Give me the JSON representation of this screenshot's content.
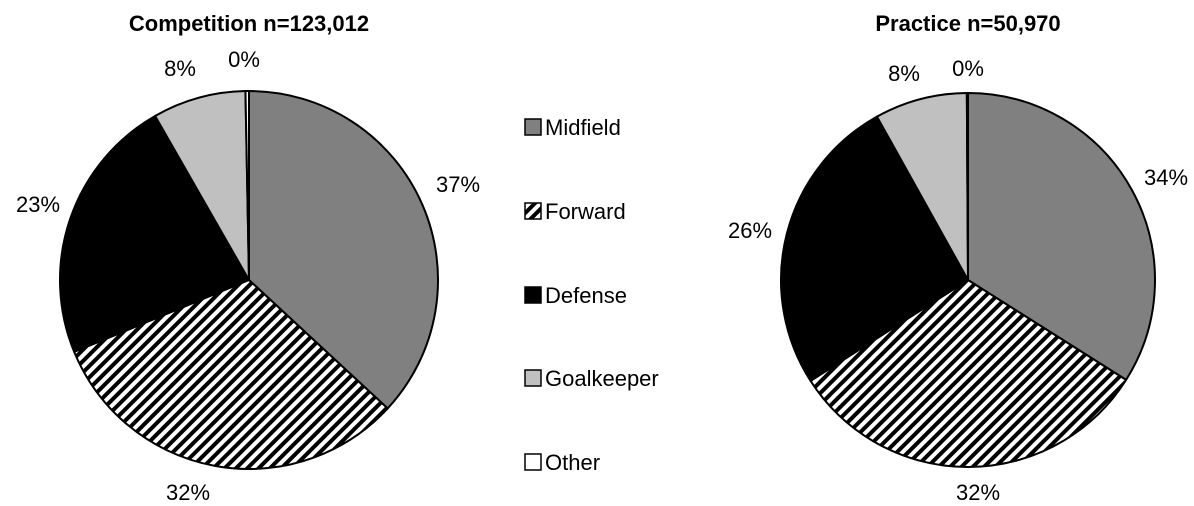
{
  "chart_data": [
    {
      "type": "pie",
      "title": "Competition n=123,012",
      "slices": [
        {
          "category": "Midfield",
          "value": 37,
          "label": "37%"
        },
        {
          "category": "Forward",
          "value": 32,
          "label": "32%"
        },
        {
          "category": "Defense",
          "value": 23,
          "label": "23%"
        },
        {
          "category": "Goalkeeper",
          "value": 8,
          "label": "8%"
        },
        {
          "category": "Other",
          "value": 0.3,
          "label": "0%"
        }
      ]
    },
    {
      "type": "pie",
      "title": "Practice n=50,970",
      "slices": [
        {
          "category": "Midfield",
          "value": 34,
          "label": "34%"
        },
        {
          "category": "Forward",
          "value": 32,
          "label": "32%"
        },
        {
          "category": "Defense",
          "value": 26,
          "label": "26%"
        },
        {
          "category": "Goalkeeper",
          "value": 8,
          "label": "8%"
        },
        {
          "category": "Other",
          "value": 0.1,
          "label": "0%"
        }
      ]
    }
  ],
  "legend": {
    "placement": "center",
    "items": [
      {
        "label": "Midfield",
        "fill": "#808080"
      },
      {
        "label": "Forward",
        "fill": "hatch"
      },
      {
        "label": "Defense",
        "fill": "#000000"
      },
      {
        "label": "Goalkeeper",
        "fill": "#c0c0c0"
      },
      {
        "label": "Other",
        "fill": "#ffffff"
      }
    ]
  },
  "colors": {
    "Midfield": "#808080",
    "Forward": "hatch",
    "Defense": "#000000",
    "Goalkeeper": "#c0c0c0",
    "Other": "#ffffff"
  }
}
